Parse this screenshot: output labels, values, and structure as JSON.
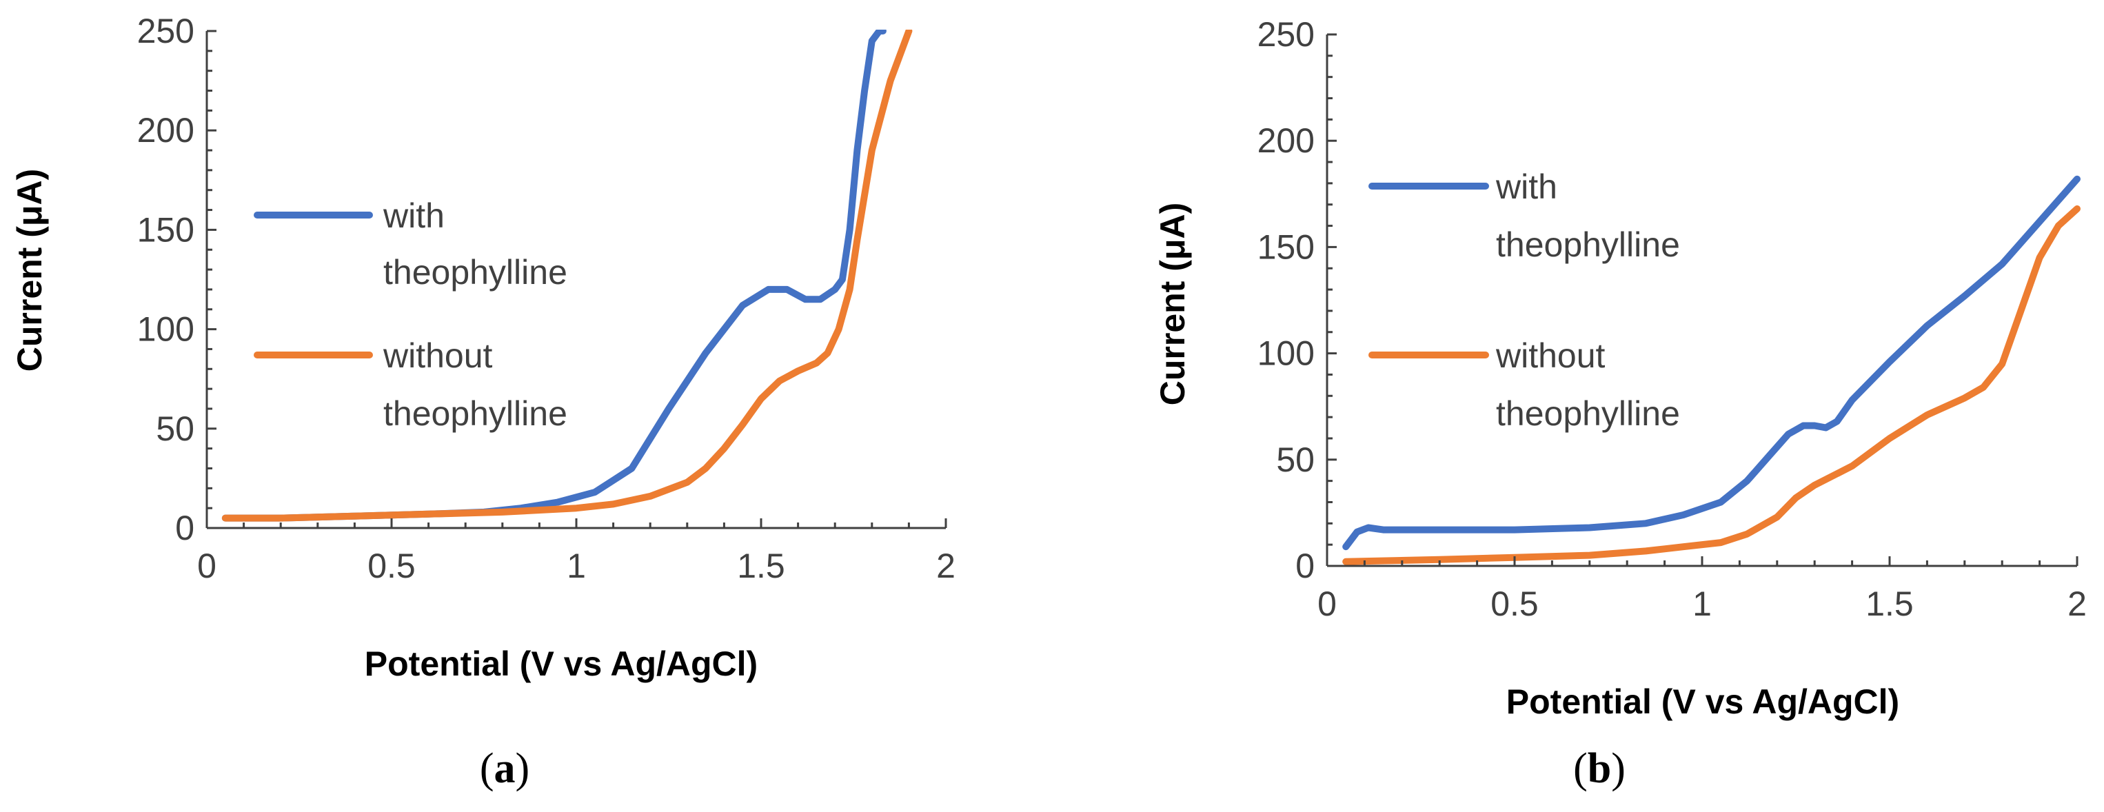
{
  "figure": {
    "panels": [
      "a",
      "b"
    ],
    "colors": {
      "with": "#4472C4",
      "without": "#ED7D31"
    }
  },
  "chart_data": [
    {
      "type": "line",
      "panel_label": "a",
      "xlabel": "Potential (V vs Ag/AgCl)",
      "ylabel": "Current (μA)",
      "xlim": [
        0,
        2
      ],
      "ylim": [
        0,
        250
      ],
      "xticks": [
        "0",
        "0.5",
        "1",
        "1.5",
        "2"
      ],
      "yticks": [
        "0",
        "50",
        "100",
        "150",
        "200",
        "250"
      ],
      "legend": [
        {
          "line1": "with",
          "line2": "theophylline",
          "color": "#4472C4"
        },
        {
          "line1": "without",
          "line2": "theophylline",
          "color": "#ED7D31"
        }
      ],
      "series": [
        {
          "name": "with theophylline",
          "color": "#4472C4",
          "x": [
            0.05,
            0.2,
            0.4,
            0.6,
            0.75,
            0.85,
            0.95,
            1.05,
            1.15,
            1.25,
            1.35,
            1.45,
            1.52,
            1.57,
            1.62,
            1.66,
            1.7,
            1.72,
            1.74,
            1.76,
            1.78,
            1.8,
            1.82,
            1.83
          ],
          "y": [
            5,
            5,
            6,
            7,
            8,
            10,
            13,
            18,
            30,
            60,
            88,
            112,
            120,
            120,
            115,
            115,
            120,
            125,
            150,
            190,
            220,
            245,
            250,
            250
          ]
        },
        {
          "name": "without theophylline",
          "color": "#ED7D31",
          "x": [
            0.05,
            0.2,
            0.4,
            0.6,
            0.8,
            1.0,
            1.1,
            1.2,
            1.3,
            1.35,
            1.4,
            1.45,
            1.5,
            1.55,
            1.6,
            1.65,
            1.68,
            1.71,
            1.74,
            1.76,
            1.8,
            1.85,
            1.9
          ],
          "y": [
            5,
            5,
            6,
            7,
            8,
            10,
            12,
            16,
            23,
            30,
            40,
            52,
            65,
            74,
            79,
            83,
            88,
            100,
            120,
            145,
            190,
            225,
            250
          ]
        }
      ]
    },
    {
      "type": "line",
      "panel_label": "b",
      "xlabel": "Potential (V vs Ag/AgCl)",
      "ylabel": "Current (μA)",
      "xlim": [
        0,
        2
      ],
      "ylim": [
        0,
        250
      ],
      "xticks": [
        "0",
        "0.5",
        "1",
        "1.5",
        "2"
      ],
      "yticks": [
        "0",
        "50",
        "100",
        "150",
        "200",
        "250"
      ],
      "legend": [
        {
          "line1": "with",
          "line2": "theophylline",
          "color": "#4472C4"
        },
        {
          "line1": "without",
          "line2": "theophylline",
          "color": "#ED7D31"
        }
      ],
      "series": [
        {
          "name": "with theophylline",
          "color": "#4472C4",
          "x": [
            0.05,
            0.08,
            0.11,
            0.15,
            0.3,
            0.5,
            0.7,
            0.85,
            0.95,
            1.05,
            1.12,
            1.18,
            1.23,
            1.27,
            1.3,
            1.33,
            1.36,
            1.4,
            1.5,
            1.6,
            1.7,
            1.8,
            1.9,
            2.0
          ],
          "y": [
            9,
            16,
            18,
            17,
            17,
            17,
            18,
            20,
            24,
            30,
            40,
            52,
            62,
            66,
            66,
            65,
            68,
            78,
            96,
            113,
            127,
            142,
            162,
            182
          ]
        },
        {
          "name": "without theophylline",
          "color": "#ED7D31",
          "x": [
            0.05,
            0.3,
            0.5,
            0.7,
            0.85,
            0.95,
            1.05,
            1.12,
            1.2,
            1.25,
            1.3,
            1.4,
            1.5,
            1.6,
            1.7,
            1.75,
            1.8,
            1.85,
            1.9,
            1.95,
            2.0
          ],
          "y": [
            2,
            3,
            4,
            5,
            7,
            9,
            11,
            15,
            23,
            32,
            38,
            47,
            60,
            71,
            79,
            84,
            95,
            120,
            145,
            160,
            168
          ]
        }
      ]
    }
  ]
}
